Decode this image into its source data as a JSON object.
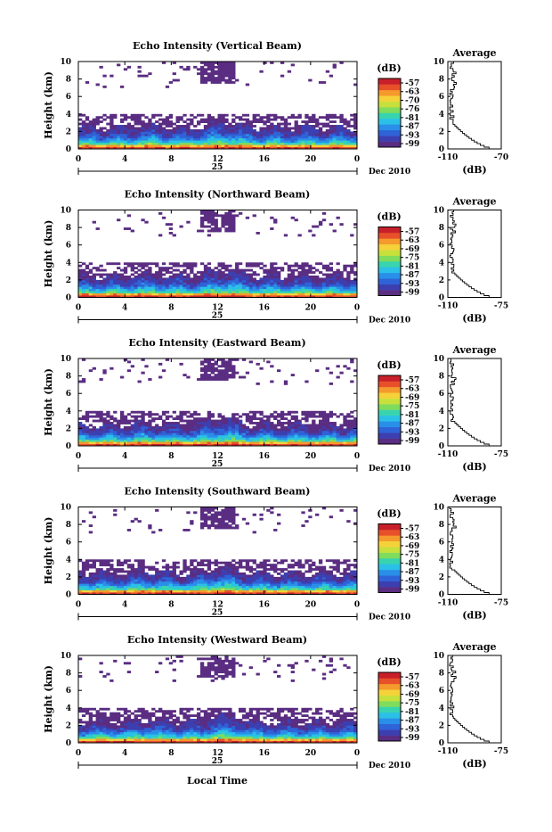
{
  "figure": {
    "x_axis_label": "Local Time",
    "day_label": "25",
    "month_label": "Dec 2010",
    "height_label": "Height (km)",
    "units_label": "(dB)",
    "avg_title": "Average",
    "avg_xlabel": "(dB)"
  },
  "colorscale": [
    "#5a2d82",
    "#3d3fb0",
    "#2f63d8",
    "#2a8fe8",
    "#2bc0e8",
    "#38d4b0",
    "#7fdc5c",
    "#c8e03c",
    "#f5d23a",
    "#f59a2c",
    "#e8502a",
    "#c8202a"
  ],
  "chart_data": [
    {
      "type": "heatmap",
      "title": "Echo Intensity (Vertical Beam)",
      "x_ticks": [
        "0",
        "4",
        "8",
        "12",
        "16",
        "20",
        "0"
      ],
      "y_ticks": [
        "0",
        "2",
        "4",
        "6",
        "8",
        "10"
      ],
      "xlim": [
        0,
        24
      ],
      "ylim": [
        0,
        10
      ],
      "colorbar_ticks": [
        "-57",
        "-63",
        "-70",
        "-76",
        "-81",
        "-87",
        "-93",
        "-99"
      ],
      "average": {
        "xticks": [
          "-110",
          "-70"
        ],
        "xlim": [
          -110,
          -70
        ]
      }
    },
    {
      "type": "heatmap",
      "title": "Echo Intensity (Northward Beam)",
      "x_ticks": [
        "0",
        "4",
        "8",
        "12",
        "16",
        "20",
        "0"
      ],
      "y_ticks": [
        "0",
        "2",
        "4",
        "6",
        "8",
        "10"
      ],
      "xlim": [
        0,
        24
      ],
      "ylim": [
        0,
        10
      ],
      "colorbar_ticks": [
        "-57",
        "-63",
        "-69",
        "-75",
        "-81",
        "-87",
        "-93",
        "-99"
      ],
      "average": {
        "xticks": [
          "-110",
          "-75"
        ],
        "xlim": [
          -110,
          -75
        ]
      }
    },
    {
      "type": "heatmap",
      "title": "Echo Intensity (Eastward Beam)",
      "x_ticks": [
        "0",
        "4",
        "8",
        "12",
        "16",
        "20",
        "0"
      ],
      "y_ticks": [
        "0",
        "2",
        "4",
        "6",
        "8",
        "10"
      ],
      "xlim": [
        0,
        24
      ],
      "ylim": [
        0,
        10
      ],
      "colorbar_ticks": [
        "-57",
        "-63",
        "-69",
        "-75",
        "-81",
        "-87",
        "-93",
        "-99"
      ],
      "average": {
        "xticks": [
          "-110",
          "-75"
        ],
        "xlim": [
          -110,
          -75
        ]
      }
    },
    {
      "type": "heatmap",
      "title": "Echo Intensity (Southward Beam)",
      "x_ticks": [
        "0",
        "4",
        "8",
        "12",
        "16",
        "20",
        "0"
      ],
      "y_ticks": [
        "0",
        "2",
        "4",
        "6",
        "8",
        "10"
      ],
      "xlim": [
        0,
        24
      ],
      "ylim": [
        0,
        10
      ],
      "colorbar_ticks": [
        "-57",
        "-63",
        "-69",
        "-75",
        "-81",
        "-87",
        "-93",
        "-99"
      ],
      "average": {
        "xticks": [
          "-110",
          "-75"
        ],
        "xlim": [
          -110,
          -75
        ]
      }
    },
    {
      "type": "heatmap",
      "title": "Echo Intensity (Westward Beam)",
      "x_ticks": [
        "0",
        "4",
        "8",
        "12",
        "16",
        "20",
        "0"
      ],
      "y_ticks": [
        "0",
        "2",
        "4",
        "6",
        "8",
        "10"
      ],
      "xlim": [
        0,
        24
      ],
      "ylim": [
        0,
        10
      ],
      "colorbar_ticks": [
        "-57",
        "-63",
        "-69",
        "-75",
        "-81",
        "-87",
        "-93",
        "-99"
      ],
      "average": {
        "xticks": [
          "-110",
          "-75"
        ],
        "xlim": [
          -110,
          -75
        ]
      }
    }
  ]
}
